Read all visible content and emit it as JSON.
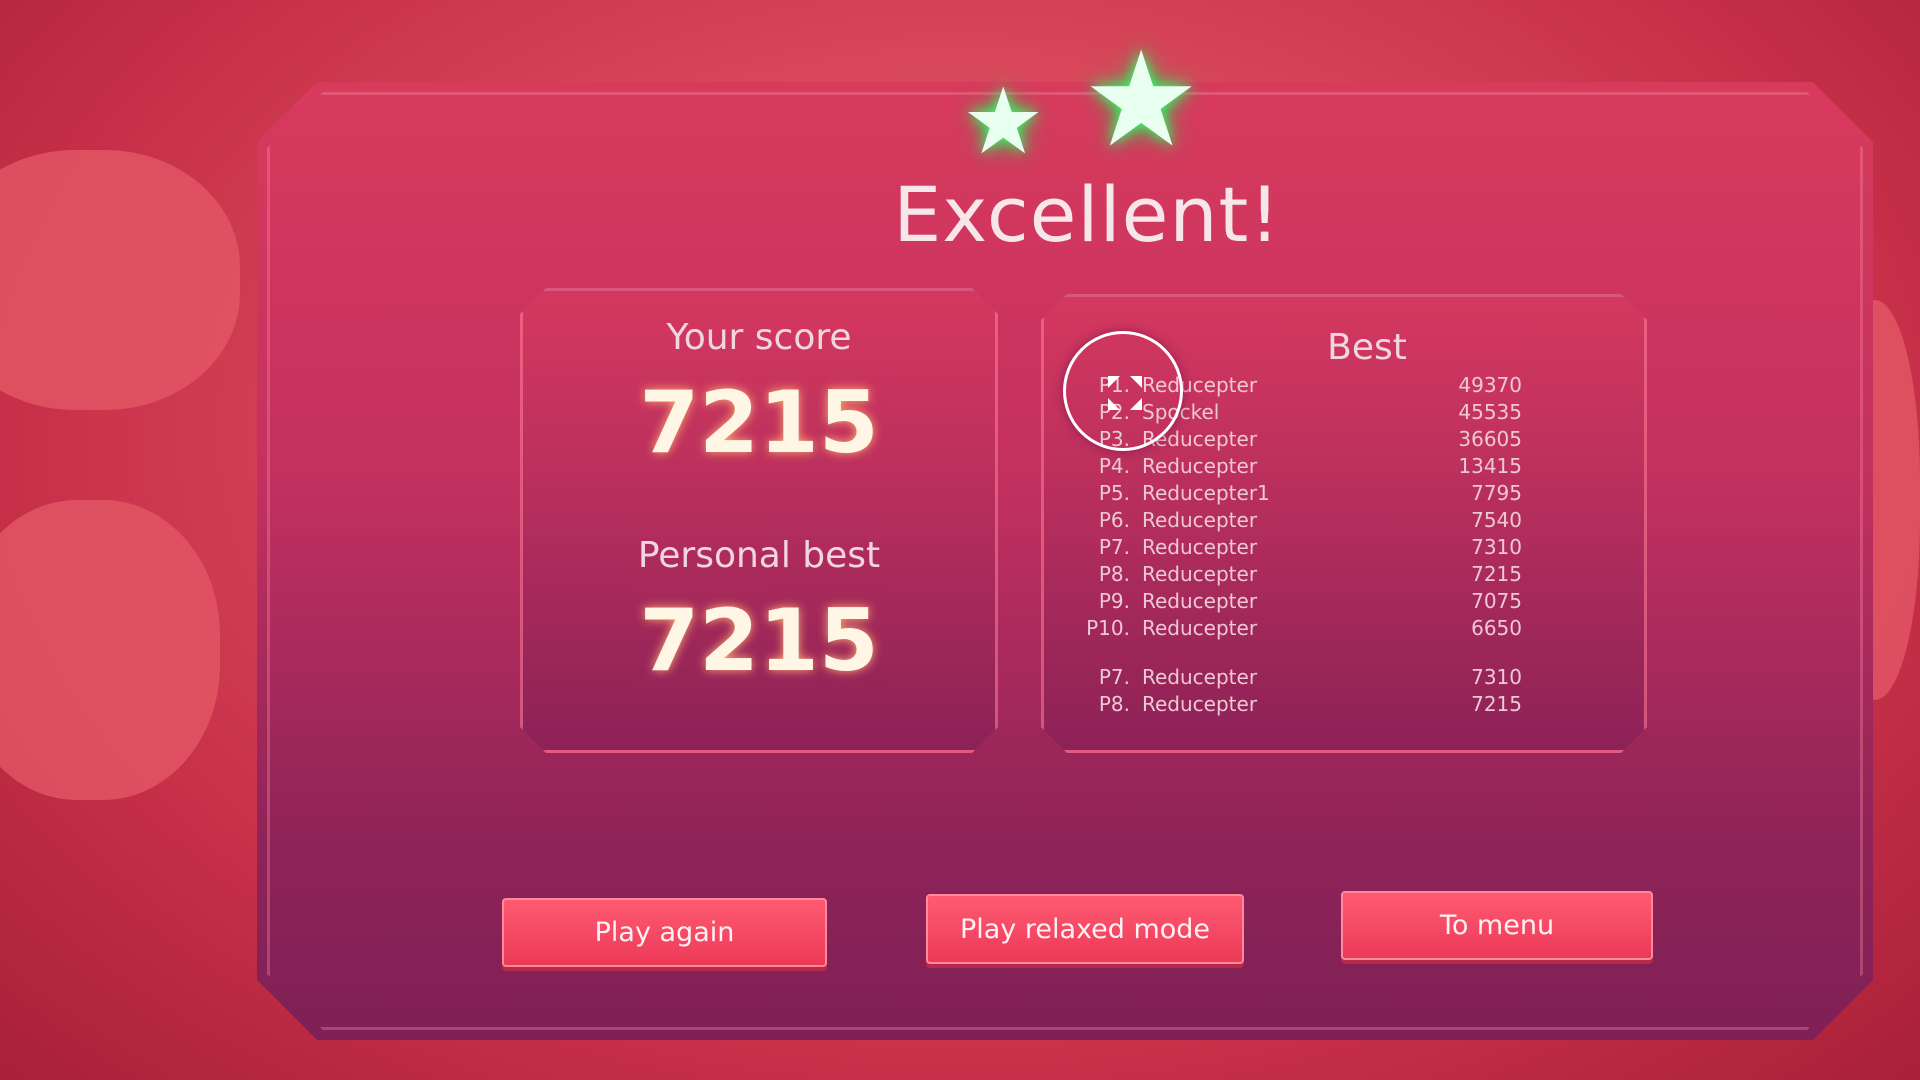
{
  "result": {
    "title": "Excellent!",
    "stars_earned": 2
  },
  "score": {
    "label": "Your score",
    "value": "7215",
    "best_label": "Personal best",
    "best_value": "7215"
  },
  "leaderboard": {
    "title": "Best",
    "top": [
      {
        "rank": "P1.",
        "name": "Reducepter",
        "score": "49370"
      },
      {
        "rank": "P2.",
        "name": "Spockel",
        "score": "45535"
      },
      {
        "rank": "P3.",
        "name": "Reducepter",
        "score": "36605"
      },
      {
        "rank": "P4.",
        "name": "Reducepter",
        "score": "13415"
      },
      {
        "rank": "P5.",
        "name": "Reducepter1",
        "score": "7795"
      },
      {
        "rank": "P6.",
        "name": "Reducepter",
        "score": "7540"
      },
      {
        "rank": "P7.",
        "name": "Reducepter",
        "score": "7310"
      },
      {
        "rank": "P8.",
        "name": "Reducepter",
        "score": "7215"
      },
      {
        "rank": "P9.",
        "name": "Reducepter",
        "score": "7075"
      },
      {
        "rank": "P10.",
        "name": "Reducepter",
        "score": "6650"
      }
    ],
    "nearby": [
      {
        "rank": "P7.",
        "name": "Reducepter",
        "score": "7310"
      },
      {
        "rank": "P8.",
        "name": "Reducepter",
        "score": "7215"
      }
    ]
  },
  "buttons": {
    "play_again": "Play again",
    "relaxed": "Play relaxed mode",
    "menu": "To menu"
  },
  "colors": {
    "accent": "#ec3a58",
    "star_glow": "#3cff6a"
  }
}
